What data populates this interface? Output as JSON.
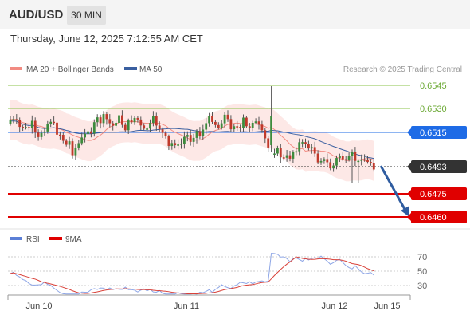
{
  "header": {
    "symbol": "AUD/USD",
    "timeframe": "30 MIN"
  },
  "datetime": "Thursday, June 12, 2025 7:12:55 AM CET",
  "legend": {
    "ma20": {
      "label": "MA 20 + Bollinger Bands",
      "color": "#f28b82"
    },
    "ma50": {
      "label": "MA 50",
      "color": "#3a5fa0"
    },
    "credit": "Research © 2025 Trading Central"
  },
  "levels": [
    {
      "value": "0.6545",
      "kind": "resistance",
      "color": "#8bc34a"
    },
    {
      "value": "0.6530",
      "kind": "resistance",
      "color": "#8bc34a"
    },
    {
      "value": "0.6515",
      "kind": "pivot",
      "color": "#1e6be6"
    },
    {
      "value": "0.6493",
      "kind": "last",
      "color": "#333333"
    },
    {
      "value": "0.6475",
      "kind": "support",
      "color": "#e00000"
    },
    {
      "value": "0.6460",
      "kind": "support",
      "color": "#e00000"
    }
  ],
  "rsi_legend": {
    "rsi": {
      "label": "RSI",
      "color": "#5b7fd6"
    },
    "ma9": {
      "label": "9MA",
      "color": "#e00000"
    }
  },
  "rsi_axis": [
    "70",
    "50",
    "30"
  ],
  "xaxis": [
    "Jun 10",
    "Jun 11",
    "Jun 12",
    "Jun 15"
  ]
}
